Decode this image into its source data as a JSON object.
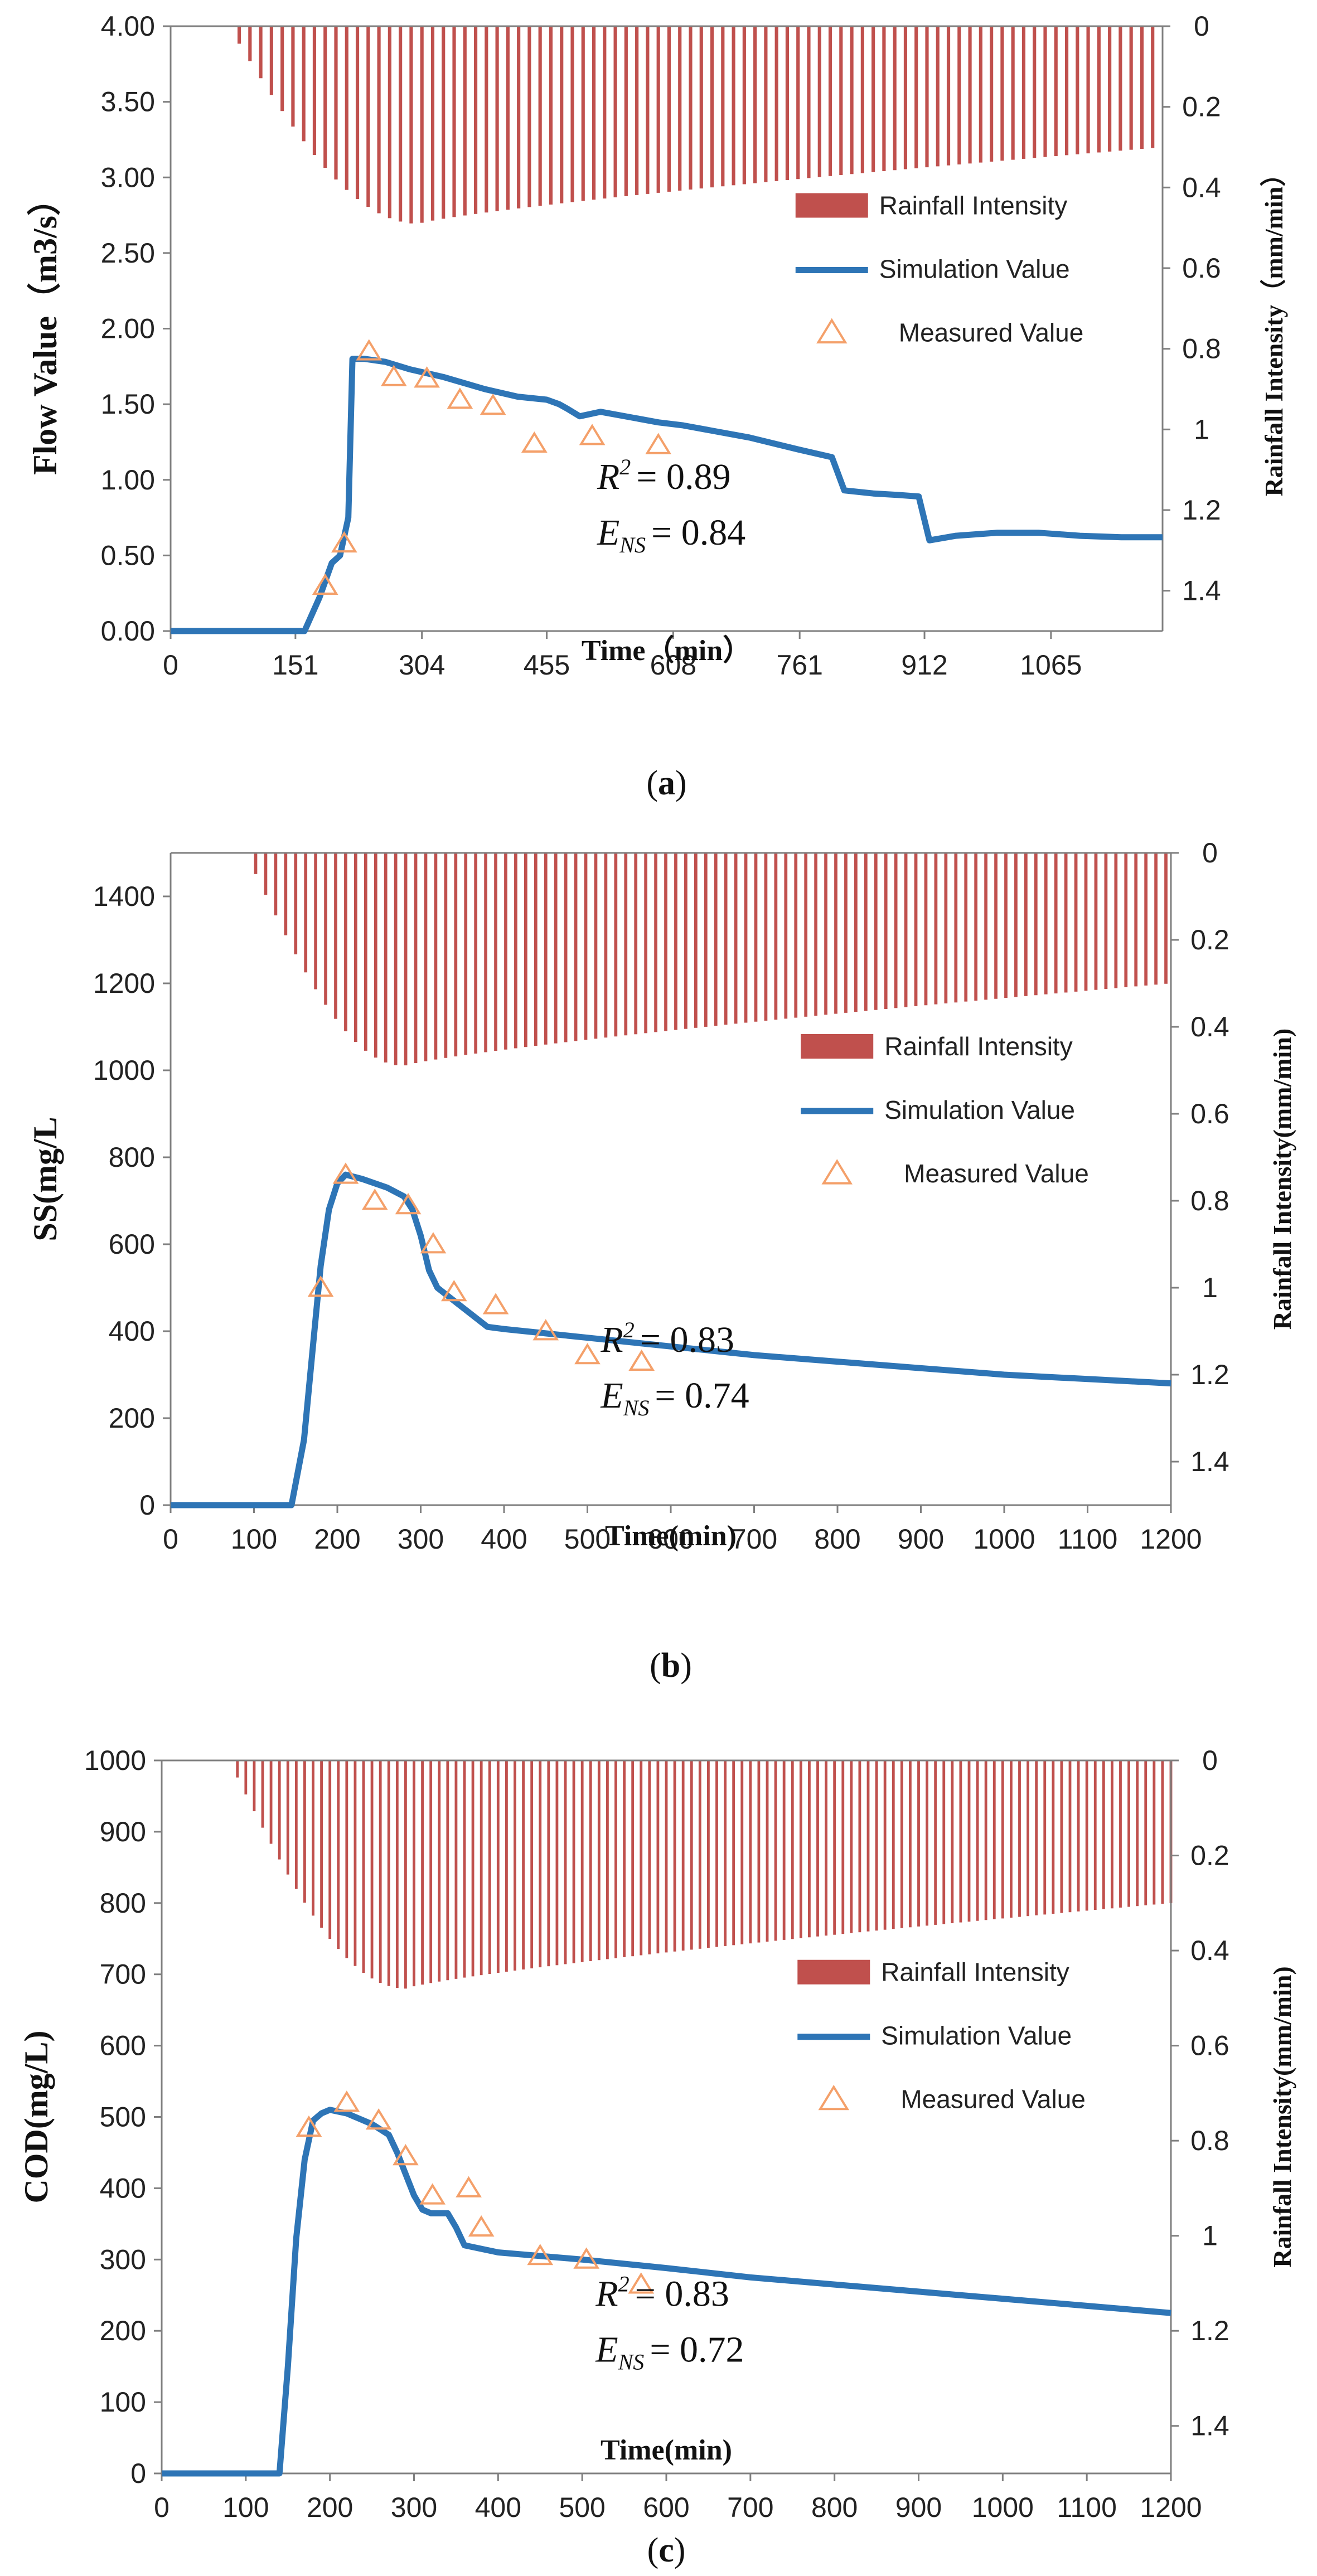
{
  "chart_data": [
    {
      "id": "a",
      "type": "line",
      "panel_label": "a",
      "xlabel": "Time（min）",
      "ylabel": "Flow Value（m3/s）",
      "y2label": "Rainfall Intensity（mm/min）",
      "xlim": [
        0,
        1200
      ],
      "ylim": [
        0,
        4
      ],
      "y2lim": [
        0,
        1.5
      ],
      "x_ticks": [
        0,
        151,
        304,
        455,
        608,
        761,
        912,
        1065
      ],
      "x_tick_labels": [
        "0",
        "151",
        "304",
        "455",
        "608",
        "761",
        "912",
        "1065"
      ],
      "y_ticks": [
        0,
        0.5,
        1,
        1.5,
        2,
        2.5,
        3,
        3.5,
        4
      ],
      "y_tick_labels": [
        "0.00",
        "0.50",
        "1.00",
        "1.50",
        "2.00",
        "2.50",
        "3.00",
        "3.50",
        "4.00"
      ],
      "y2_ticks": [
        0,
        0.2,
        0.4,
        0.6,
        0.8,
        1,
        1.2,
        1.4
      ],
      "y2_tick_labels": [
        "0",
        "0.2",
        "0.4",
        "0.6",
        "0.8",
        "1",
        "1.2",
        "1.4"
      ],
      "legend": {
        "rain": "Rainfall Intensity",
        "sim": "Simulation Value",
        "meas": "Measured Value"
      },
      "stats": {
        "r2_label": "R",
        "r2_sup": "2",
        "r2_value": "= 0.89",
        "ens_label": "E",
        "ens_sub": "NS",
        "ens_value": "= 0.84"
      },
      "series": [
        {
          "name": "Simulation Value",
          "x": [
            0,
            162,
            180,
            195,
            205,
            215,
            220,
            235,
            260,
            290,
            330,
            380,
            420,
            455,
            470,
            480,
            495,
            520,
            560,
            590,
            620,
            660,
            700,
            760,
            800,
            815,
            850,
            880,
            905,
            918,
            950,
            1000,
            1050,
            1100,
            1150,
            1200
          ],
          "y": [
            0,
            0,
            0.22,
            0.45,
            0.5,
            0.75,
            1.8,
            1.8,
            1.78,
            1.73,
            1.68,
            1.6,
            1.55,
            1.53,
            1.5,
            1.47,
            1.42,
            1.45,
            1.41,
            1.38,
            1.36,
            1.32,
            1.28,
            1.2,
            1.15,
            0.93,
            0.91,
            0.9,
            0.89,
            0.6,
            0.63,
            0.65,
            0.65,
            0.63,
            0.62,
            0.62
          ]
        },
        {
          "name": "Measured Value",
          "x": [
            187,
            210,
            240,
            270,
            310,
            350,
            390,
            440,
            510,
            590
          ],
          "y": [
            0.3,
            0.58,
            1.85,
            1.68,
            1.67,
            1.53,
            1.49,
            1.24,
            1.29,
            1.23
          ]
        },
        {
          "name": "Rainfall Intensity",
          "start": 70,
          "end": 1200,
          "step": 13,
          "onset": 70,
          "peak_x": 300,
          "peak": 0.49,
          "tail": 0.3
        }
      ]
    },
    {
      "id": "b",
      "type": "line",
      "panel_label": "b",
      "xlabel": "Time(min)",
      "ylabel": "SS(mg/L",
      "y2label": "Rainfall Intensity(mm/min)",
      "xlim": [
        0,
        1200
      ],
      "ylim": [
        0,
        1500
      ],
      "y2lim": [
        0,
        1.5
      ],
      "x_ticks": [
        0,
        100,
        200,
        300,
        400,
        500,
        600,
        700,
        800,
        900,
        1000,
        1100,
        1200
      ],
      "x_tick_labels": [
        "0",
        "100",
        "200",
        "300",
        "400",
        "500",
        "600",
        "700",
        "800",
        "900",
        "1000",
        "1100",
        "1200"
      ],
      "y_ticks": [
        0,
        200,
        400,
        600,
        800,
        1000,
        1200,
        1400
      ],
      "y_tick_labels": [
        "0",
        "200",
        "400",
        "600",
        "800",
        "1000",
        "1200",
        "1400"
      ],
      "y2_ticks": [
        0,
        0.2,
        0.4,
        0.6,
        0.8,
        1,
        1.2,
        1.4
      ],
      "y2_tick_labels": [
        "0",
        "0.2",
        "0.4",
        "0.6",
        "0.8",
        "1",
        "1.2",
        "1.4"
      ],
      "legend": {
        "rain": "Rainfall Intensity",
        "sim": "Simulation Value",
        "meas": "Measured Value"
      },
      "stats": {
        "r2_label": "R",
        "r2_sup": "2",
        "r2_value": "= 0.83",
        "ens_label": "E",
        "ens_sub": "NS",
        "ens_value": "= 0.74"
      },
      "series": [
        {
          "name": "Simulation Value",
          "x": [
            0,
            145,
            160,
            170,
            180,
            190,
            200,
            210,
            230,
            260,
            280,
            290,
            300,
            310,
            320,
            340,
            360,
            380,
            400,
            450,
            500,
            600,
            700,
            800,
            900,
            1000,
            1100,
            1200
          ],
          "y": [
            0,
            0,
            150,
            350,
            550,
            680,
            740,
            760,
            750,
            730,
            710,
            680,
            620,
            540,
            500,
            470,
            440,
            410,
            405,
            395,
            385,
            365,
            345,
            330,
            315,
            300,
            290,
            280
          ]
        },
        {
          "name": "Measured Value",
          "x": [
            180,
            210,
            245,
            285,
            315,
            340,
            390,
            450,
            500,
            565
          ],
          "y": [
            500,
            760,
            700,
            690,
            600,
            490,
            460,
            400,
            345,
            330
          ]
        },
        {
          "name": "Rainfall Intensity",
          "start": 90,
          "end": 1200,
          "step": 12,
          "onset": 90,
          "peak_x": 280,
          "peak": 0.49,
          "tail": 0.3
        }
      ]
    },
    {
      "id": "c",
      "type": "line",
      "panel_label": "c",
      "xlabel": "Time(min)",
      "ylabel": "COD(mg/L)",
      "y2label": "Rainfall Intensity(mm/min)",
      "xlim": [
        0,
        1200
      ],
      "ylim": [
        0,
        1000
      ],
      "y2lim": [
        0,
        1.5
      ],
      "x_ticks": [
        0,
        100,
        200,
        300,
        400,
        500,
        600,
        700,
        800,
        900,
        1000,
        1100,
        1200
      ],
      "x_tick_labels": [
        "0",
        "100",
        "200",
        "300",
        "400",
        "500",
        "600",
        "700",
        "800",
        "900",
        "1000",
        "1100",
        "1200"
      ],
      "y_ticks": [
        0,
        100,
        200,
        300,
        400,
        500,
        600,
        700,
        800,
        900,
        1000
      ],
      "y_tick_labels": [
        "0",
        "100",
        "200",
        "300",
        "400",
        "500",
        "600",
        "700",
        "800",
        "900",
        "1000"
      ],
      "y2_ticks": [
        0,
        0.2,
        0.4,
        0.6,
        0.8,
        1,
        1.2,
        1.4
      ],
      "y2_tick_labels": [
        "0",
        "0.2",
        "0.4",
        "0.6",
        "0.8",
        "1",
        "1.2",
        "1.4"
      ],
      "legend": {
        "rain": "Rainfall Intensity",
        "sim": "Simulation Value",
        "meas": "Measured Value"
      },
      "stats": {
        "r2_label": "R",
        "r2_sup": "2",
        "r2_value": "= 0.83",
        "ens_label": "E",
        "ens_sub": "NS",
        "ens_value": "= 0.72"
      },
      "series": [
        {
          "name": "Simulation Value",
          "x": [
            0,
            140,
            150,
            160,
            170,
            180,
            190,
            200,
            220,
            250,
            270,
            280,
            290,
            300,
            310,
            320,
            340,
            350,
            360,
            380,
            400,
            500,
            600,
            700,
            800,
            900,
            1000,
            1100,
            1200
          ],
          "y": [
            0,
            0,
            150,
            330,
            440,
            495,
            505,
            510,
            505,
            490,
            475,
            450,
            420,
            390,
            370,
            365,
            365,
            345,
            320,
            315,
            310,
            300,
            288,
            275,
            265,
            255,
            245,
            235,
            225
          ]
        },
        {
          "name": "Measured Value",
          "x": [
            175,
            220,
            258,
            290,
            322,
            365,
            380,
            450,
            505,
            570
          ],
          "y": [
            485,
            520,
            495,
            445,
            390,
            400,
            345,
            305,
            300,
            265
          ]
        },
        {
          "name": "Rainfall Intensity",
          "start": 80,
          "end": 1200,
          "step": 10,
          "onset": 80,
          "peak_x": 290,
          "peak": 0.48,
          "tail": 0.3
        }
      ]
    }
  ]
}
